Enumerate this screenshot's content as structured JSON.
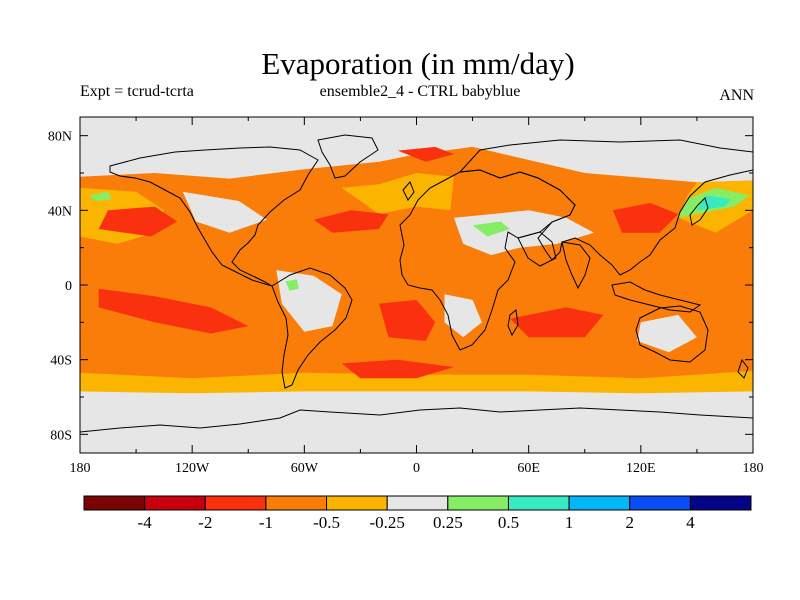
{
  "title": "Evaporation (in mm/day)",
  "subtitle_left": "Expt = tcrud-tcrta",
  "subtitle_center": "ensemble2_4 - CTRL babyblue",
  "subtitle_right": "ANN",
  "colors": {
    "land_or_neutral": "#e6e6e6",
    "ocean_default": "#f97d08"
  },
  "chart_data": {
    "type": "heatmap",
    "x_range": [
      -180,
      180
    ],
    "y_range": [
      -90,
      90
    ],
    "x_ticks": [
      {
        "value": -180,
        "label": "180"
      },
      {
        "value": -120,
        "label": "120W"
      },
      {
        "value": -60,
        "label": "60W"
      },
      {
        "value": 0,
        "label": "0"
      },
      {
        "value": 60,
        "label": "60E"
      },
      {
        "value": 120,
        "label": "120E"
      },
      {
        "value": 180,
        "label": "180"
      }
    ],
    "y_ticks": [
      {
        "value": 80,
        "label": "80N"
      },
      {
        "value": 40,
        "label": "40N"
      },
      {
        "value": 0,
        "label": "0"
      },
      {
        "value": -40,
        "label": "40S"
      },
      {
        "value": -80,
        "label": "80S"
      }
    ],
    "colorbar": {
      "colors": [
        "#7a0403",
        "#c8000b",
        "#f9310f",
        "#f97d08",
        "#fbb400",
        "#e6e6e6",
        "#86ee66",
        "#38eac1",
        "#03b6f8",
        "#0a4ff6",
        "#030486"
      ],
      "levels": [
        "-4",
        "-2",
        "-1",
        "-0.5",
        "-0.25",
        "0.25",
        "0.5",
        "1",
        "2",
        "4"
      ]
    },
    "regions": [
      {
        "color": "#f97d08",
        "polygon": [
          [
            -180,
            58
          ],
          [
            -140,
            60
          ],
          [
            -100,
            57
          ],
          [
            -60,
            62
          ],
          [
            -20,
            66
          ],
          [
            0,
            70
          ],
          [
            30,
            74
          ],
          [
            90,
            60
          ],
          [
            150,
            55
          ],
          [
            180,
            56
          ],
          [
            180,
            -50
          ],
          [
            120,
            -54
          ],
          [
            60,
            -52
          ],
          [
            0,
            -52
          ],
          [
            -60,
            -52
          ],
          [
            -120,
            -55
          ],
          [
            -180,
            -52
          ]
        ]
      },
      {
        "color": "#fbb400",
        "polygon": [
          [
            -180,
            -47
          ],
          [
            -120,
            -50
          ],
          [
            -60,
            -47
          ],
          [
            0,
            -48
          ],
          [
            60,
            -48
          ],
          [
            120,
            -50
          ],
          [
            180,
            -46
          ],
          [
            180,
            -57
          ],
          [
            120,
            -58
          ],
          [
            60,
            -57
          ],
          [
            0,
            -57
          ],
          [
            -60,
            -57
          ],
          [
            -120,
            -58
          ],
          [
            -180,
            -57
          ]
        ]
      },
      {
        "color": "#fbb400",
        "polygon": [
          [
            -180,
            52
          ],
          [
            -150,
            50
          ],
          [
            -135,
            40
          ],
          [
            -140,
            28
          ],
          [
            -160,
            22
          ],
          [
            -180,
            26
          ]
        ]
      },
      {
        "color": "#fbb400",
        "polygon": [
          [
            150,
            55
          ],
          [
            180,
            56
          ],
          [
            180,
            40
          ],
          [
            160,
            28
          ],
          [
            140,
            36
          ],
          [
            145,
            48
          ]
        ]
      },
      {
        "color": "#fbb400",
        "polygon": [
          [
            -40,
            52
          ],
          [
            -20,
            54
          ],
          [
            0,
            60
          ],
          [
            20,
            58
          ],
          [
            18,
            40
          ],
          [
            0,
            42
          ],
          [
            -20,
            38
          ]
        ]
      },
      {
        "color": "#f9310f",
        "polygon": [
          [
            -165,
            40
          ],
          [
            -140,
            42
          ],
          [
            -128,
            34
          ],
          [
            -142,
            26
          ],
          [
            -170,
            30
          ]
        ]
      },
      {
        "color": "#f9310f",
        "polygon": [
          [
            -170,
            -2
          ],
          [
            -140,
            -6
          ],
          [
            -110,
            -12
          ],
          [
            -90,
            -22
          ],
          [
            -110,
            -26
          ],
          [
            -140,
            -20
          ],
          [
            -170,
            -12
          ]
        ]
      },
      {
        "color": "#f9310f",
        "polygon": [
          [
            -55,
            35
          ],
          [
            -35,
            40
          ],
          [
            -15,
            38
          ],
          [
            -20,
            30
          ],
          [
            -45,
            28
          ]
        ]
      },
      {
        "color": "#f9310f",
        "polygon": [
          [
            -20,
            -10
          ],
          [
            0,
            -8
          ],
          [
            10,
            -20
          ],
          [
            5,
            -30
          ],
          [
            -15,
            -28
          ]
        ]
      },
      {
        "color": "#f9310f",
        "polygon": [
          [
            50,
            -18
          ],
          [
            80,
            -12
          ],
          [
            100,
            -16
          ],
          [
            90,
            -28
          ],
          [
            60,
            -28
          ]
        ]
      },
      {
        "color": "#f9310f",
        "polygon": [
          [
            -40,
            -42
          ],
          [
            -10,
            -40
          ],
          [
            20,
            -44
          ],
          [
            0,
            -50
          ],
          [
            -30,
            -50
          ]
        ]
      },
      {
        "color": "#f9310f",
        "polygon": [
          [
            105,
            40
          ],
          [
            125,
            44
          ],
          [
            140,
            38
          ],
          [
            130,
            28
          ],
          [
            110,
            28
          ]
        ]
      },
      {
        "color": "#f9310f",
        "polygon": [
          [
            -10,
            72
          ],
          [
            10,
            74
          ],
          [
            20,
            70
          ],
          [
            5,
            66
          ]
        ]
      },
      {
        "color": "#e6e6e6",
        "polygon": [
          [
            20,
            36
          ],
          [
            40,
            38
          ],
          [
            60,
            40
          ],
          [
            80,
            36
          ],
          [
            95,
            28
          ],
          [
            75,
            22
          ],
          [
            55,
            20
          ],
          [
            40,
            16
          ],
          [
            25,
            22
          ]
        ]
      },
      {
        "color": "#e6e6e6",
        "polygon": [
          [
            -75,
            8
          ],
          [
            -55,
            5
          ],
          [
            -40,
            -5
          ],
          [
            -45,
            -22
          ],
          [
            -60,
            -25
          ],
          [
            -72,
            -10
          ]
        ]
      },
      {
        "color": "#e6e6e6",
        "polygon": [
          [
            15,
            -5
          ],
          [
            30,
            -8
          ],
          [
            35,
            -20
          ],
          [
            25,
            -28
          ],
          [
            15,
            -20
          ]
        ]
      },
      {
        "color": "#e6e6e6",
        "polygon": [
          [
            120,
            -20
          ],
          [
            140,
            -16
          ],
          [
            150,
            -28
          ],
          [
            135,
            -36
          ],
          [
            118,
            -30
          ]
        ]
      },
      {
        "color": "#e6e6e6",
        "polygon": [
          [
            -125,
            50
          ],
          [
            -95,
            45
          ],
          [
            -80,
            35
          ],
          [
            -100,
            28
          ],
          [
            -118,
            34
          ]
        ]
      },
      {
        "color": "#e6e6e6",
        "polygon": [
          [
            -180,
            -60
          ],
          [
            180,
            -60
          ],
          [
            180,
            -90
          ],
          [
            -180,
            -90
          ]
        ]
      },
      {
        "color": "#e6e6e6",
        "polygon": [
          [
            -180,
            90
          ],
          [
            180,
            90
          ],
          [
            180,
            72
          ],
          [
            120,
            70
          ],
          [
            60,
            72
          ],
          [
            0,
            80
          ],
          [
            -60,
            78
          ],
          [
            -120,
            74
          ],
          [
            -180,
            72
          ]
        ]
      },
      {
        "color": "#86ee66",
        "polygon": [
          [
            140,
            36
          ],
          [
            170,
            42
          ],
          [
            178,
            48
          ],
          [
            160,
            52
          ],
          [
            145,
            46
          ]
        ]
      },
      {
        "color": "#38eac1",
        "polygon": [
          [
            150,
            40
          ],
          [
            165,
            42
          ],
          [
            168,
            46
          ],
          [
            155,
            48
          ]
        ]
      },
      {
        "color": "#86ee66",
        "polygon": [
          [
            30,
            32
          ],
          [
            45,
            34
          ],
          [
            50,
            30
          ],
          [
            38,
            26
          ]
        ]
      },
      {
        "color": "#86ee66",
        "polygon": [
          [
            -175,
            48
          ],
          [
            -165,
            50
          ],
          [
            -163,
            46
          ],
          [
            -172,
            45
          ]
        ]
      },
      {
        "color": "#86ee66",
        "polygon": [
          [
            -70,
            2
          ],
          [
            -64,
            3
          ],
          [
            -63,
            -2
          ],
          [
            -68,
            -3
          ]
        ]
      }
    ]
  }
}
